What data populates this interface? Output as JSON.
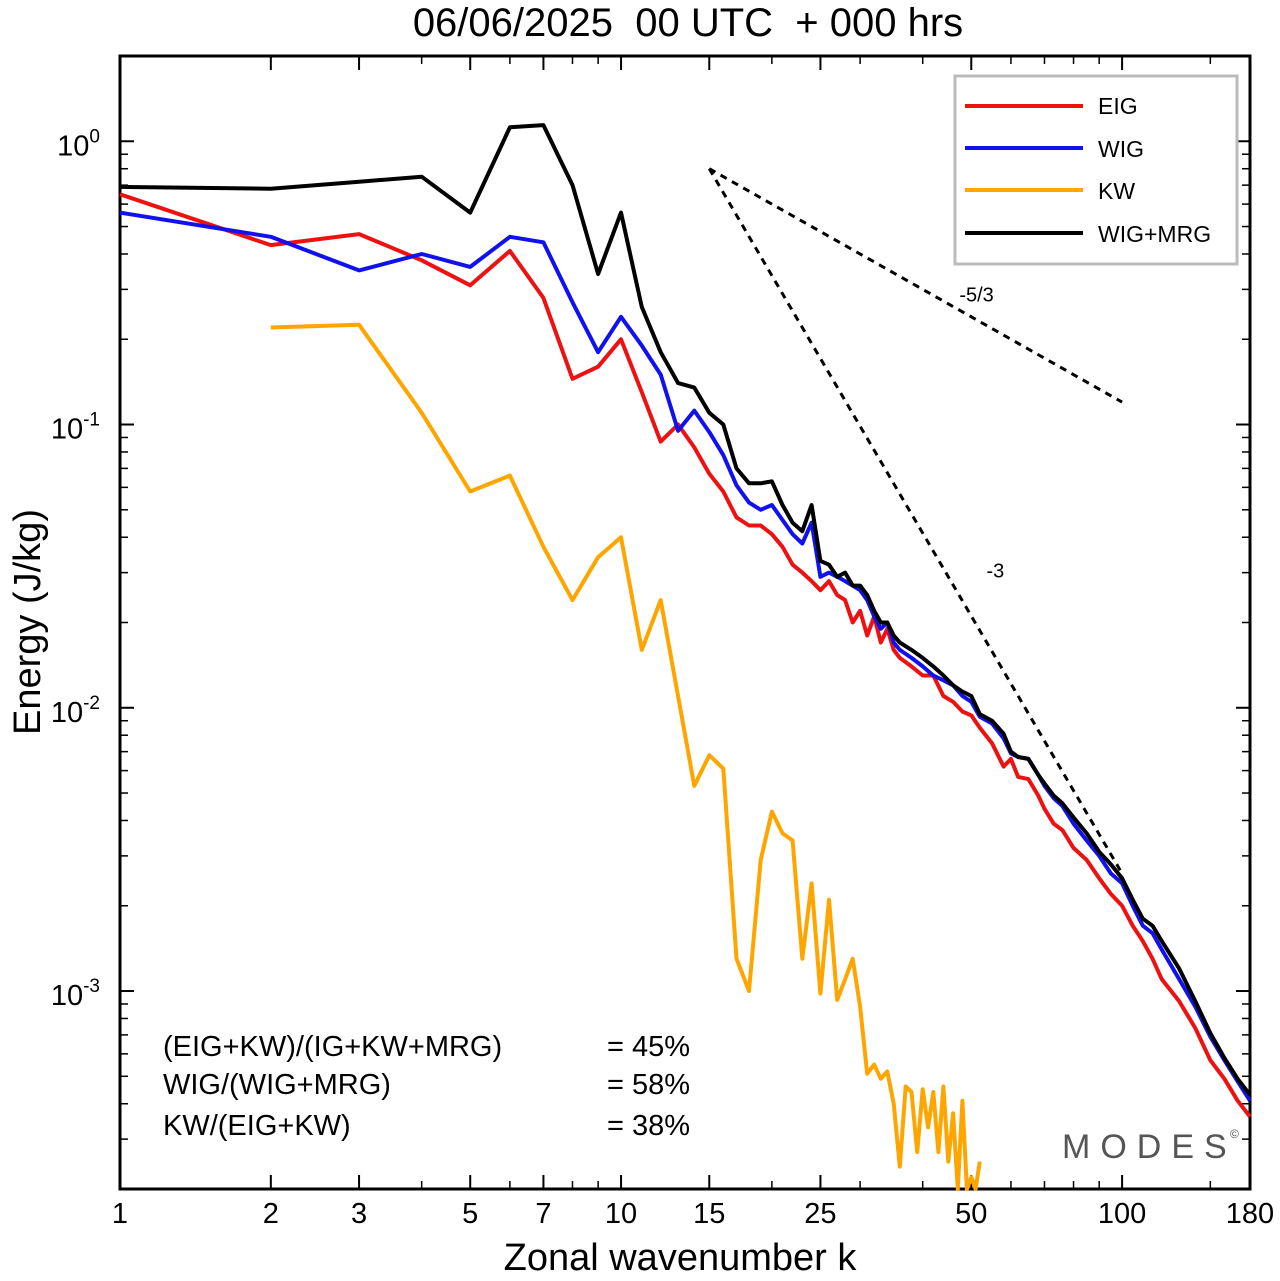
{
  "chart_data": {
    "type": "line",
    "title": "06/06/2025  00 UTC  + 000 hrs",
    "xlabel": "Zonal wavenumber k",
    "ylabel": "Energy (J/kg)",
    "xscale": "log",
    "yscale": "log",
    "xlim": [
      1,
      180
    ],
    "ylim": [
      0.0002,
      2.0
    ],
    "xticks": [
      1,
      2,
      3,
      5,
      7,
      10,
      15,
      25,
      50,
      100,
      180
    ],
    "xtick_labels": [
      "1",
      "2",
      "3",
      "5",
      "7",
      "10",
      "15",
      "25",
      "50",
      "100",
      "180"
    ],
    "yticks": [
      {
        "value": 1.0,
        "base": "10",
        "exp": "0"
      },
      {
        "value": 0.1,
        "base": "10",
        "exp": "-1"
      },
      {
        "value": 0.01,
        "base": "10",
        "exp": "-2"
      },
      {
        "value": 0.001,
        "base": "10",
        "exp": "-3"
      }
    ],
    "grid": false,
    "legend_position": "top-right",
    "series": [
      {
        "name": "EIG",
        "color": "#ee1111",
        "points": [
          [
            1,
            0.65
          ],
          [
            2,
            0.43
          ],
          [
            3,
            0.47
          ],
          [
            4,
            0.38
          ],
          [
            5,
            0.31
          ],
          [
            6,
            0.41
          ],
          [
            7,
            0.28
          ],
          [
            8,
            0.145
          ],
          [
            9,
            0.16
          ],
          [
            10,
            0.2
          ],
          [
            11,
            0.13
          ],
          [
            12,
            0.087
          ],
          [
            13,
            0.1
          ],
          [
            14,
            0.083
          ],
          [
            15,
            0.067
          ],
          [
            16,
            0.058
          ],
          [
            17,
            0.047
          ],
          [
            18,
            0.044
          ],
          [
            19,
            0.044
          ],
          [
            20,
            0.041
          ],
          [
            21,
            0.037
          ],
          [
            22,
            0.032
          ],
          [
            23,
            0.03
          ],
          [
            24,
            0.028
          ],
          [
            25,
            0.026
          ],
          [
            26,
            0.028
          ],
          [
            27,
            0.025
          ],
          [
            28,
            0.024
          ],
          [
            29,
            0.02
          ],
          [
            30,
            0.022
          ],
          [
            31,
            0.018
          ],
          [
            32,
            0.021
          ],
          [
            33,
            0.017
          ],
          [
            34,
            0.019
          ],
          [
            35,
            0.016
          ],
          [
            36,
            0.015
          ],
          [
            38,
            0.014
          ],
          [
            40,
            0.013
          ],
          [
            42,
            0.013
          ],
          [
            44,
            0.011
          ],
          [
            46,
            0.0105
          ],
          [
            48,
            0.0097
          ],
          [
            50,
            0.0094
          ],
          [
            52,
            0.0085
          ],
          [
            55,
            0.0075
          ],
          [
            58,
            0.0062
          ],
          [
            60,
            0.0066
          ],
          [
            62,
            0.0057
          ],
          [
            65,
            0.0056
          ],
          [
            68,
            0.0049
          ],
          [
            70,
            0.0044
          ],
          [
            73,
            0.0039
          ],
          [
            76,
            0.0037
          ],
          [
            80,
            0.0032
          ],
          [
            85,
            0.0029
          ],
          [
            90,
            0.0025
          ],
          [
            95,
            0.0022
          ],
          [
            100,
            0.002
          ],
          [
            105,
            0.0017
          ],
          [
            110,
            0.0015
          ],
          [
            115,
            0.0013
          ],
          [
            120,
            0.0011
          ],
          [
            130,
            0.00092
          ],
          [
            140,
            0.00074
          ],
          [
            150,
            0.00057
          ],
          [
            160,
            0.00049
          ],
          [
            170,
            0.00041
          ],
          [
            180,
            0.00036
          ]
        ]
      },
      {
        "name": "WIG",
        "color": "#1111ee",
        "points": [
          [
            1,
            0.56
          ],
          [
            2,
            0.46
          ],
          [
            3,
            0.35
          ],
          [
            4,
            0.4
          ],
          [
            5,
            0.36
          ],
          [
            6,
            0.46
          ],
          [
            7,
            0.44
          ],
          [
            8,
            0.27
          ],
          [
            9,
            0.18
          ],
          [
            10,
            0.24
          ],
          [
            11,
            0.19
          ],
          [
            12,
            0.15
          ],
          [
            13,
            0.095
          ],
          [
            14,
            0.112
          ],
          [
            15,
            0.094
          ],
          [
            16,
            0.078
          ],
          [
            17,
            0.061
          ],
          [
            18,
            0.053
          ],
          [
            19,
            0.05
          ],
          [
            20,
            0.052
          ],
          [
            21,
            0.046
          ],
          [
            22,
            0.041
          ],
          [
            23,
            0.038
          ],
          [
            24,
            0.045
          ],
          [
            25,
            0.029
          ],
          [
            26,
            0.03
          ],
          [
            27,
            0.029
          ],
          [
            28,
            0.028
          ],
          [
            29,
            0.027
          ],
          [
            30,
            0.026
          ],
          [
            31,
            0.024
          ],
          [
            32,
            0.021
          ],
          [
            33,
            0.019
          ],
          [
            34,
            0.02
          ],
          [
            35,
            0.017
          ],
          [
            36,
            0.016
          ],
          [
            38,
            0.015
          ],
          [
            40,
            0.014
          ],
          [
            42,
            0.013
          ],
          [
            44,
            0.0125
          ],
          [
            46,
            0.012
          ],
          [
            48,
            0.011
          ],
          [
            50,
            0.0105
          ],
          [
            52,
            0.0093
          ],
          [
            55,
            0.0088
          ],
          [
            58,
            0.0078
          ],
          [
            60,
            0.0069
          ],
          [
            62,
            0.0067
          ],
          [
            65,
            0.0066
          ],
          [
            68,
            0.0058
          ],
          [
            70,
            0.0053
          ],
          [
            73,
            0.0048
          ],
          [
            76,
            0.0045
          ],
          [
            80,
            0.0039
          ],
          [
            85,
            0.0034
          ],
          [
            90,
            0.003
          ],
          [
            95,
            0.0026
          ],
          [
            100,
            0.0024
          ],
          [
            105,
            0.002
          ],
          [
            110,
            0.0017
          ],
          [
            115,
            0.0016
          ],
          [
            120,
            0.0014
          ],
          [
            130,
            0.0011
          ],
          [
            140,
            0.00088
          ],
          [
            150,
            0.00069
          ],
          [
            160,
            0.00057
          ],
          [
            170,
            0.00048
          ],
          [
            180,
            0.00041
          ]
        ]
      },
      {
        "name": "KW",
        "color": "#ffa500",
        "points": [
          [
            2,
            0.22
          ],
          [
            3,
            0.225
          ],
          [
            4,
            0.11
          ],
          [
            5,
            0.058
          ],
          [
            6,
            0.066
          ],
          [
            7,
            0.037
          ],
          [
            8,
            0.024
          ],
          [
            9,
            0.034
          ],
          [
            10,
            0.04
          ],
          [
            11,
            0.016
          ],
          [
            12,
            0.024
          ],
          [
            14,
            0.0053
          ],
          [
            15,
            0.0068
          ],
          [
            16,
            0.0061
          ],
          [
            17,
            0.0013
          ],
          [
            18,
            0.001
          ],
          [
            19,
            0.0029
          ],
          [
            20,
            0.0043
          ],
          [
            21,
            0.0036
          ],
          [
            22,
            0.0034
          ],
          [
            23,
            0.0013
          ],
          [
            24,
            0.0024
          ],
          [
            25,
            0.00098
          ],
          [
            26,
            0.0021
          ],
          [
            27,
            0.00093
          ],
          [
            28,
            0.0011
          ],
          [
            29,
            0.0013
          ],
          [
            30,
            0.00088
          ],
          [
            31,
            0.00051
          ],
          [
            32,
            0.00055
          ],
          [
            33,
            0.00049
          ],
          [
            34,
            0.00052
          ],
          [
            35,
            0.0004
          ],
          [
            36,
            0.00024
          ],
          [
            37,
            0.00046
          ],
          [
            38,
            0.00044
          ],
          [
            39,
            0.00027
          ],
          [
            40,
            0.00045
          ],
          [
            41,
            0.00033
          ],
          [
            42,
            0.00044
          ],
          [
            43,
            0.00027
          ],
          [
            44,
            0.00046
          ],
          [
            45,
            0.00025
          ],
          [
            46,
            0.00037
          ],
          [
            47,
            0.0002
          ],
          [
            48,
            0.00041
          ],
          [
            49,
            0.0002
          ],
          [
            50,
            0.00022
          ],
          [
            51,
            0.0002
          ],
          [
            52,
            0.00025
          ]
        ]
      },
      {
        "name": "WIG+MRG",
        "color": "#000000",
        "points": [
          [
            1,
            0.69
          ],
          [
            2,
            0.68
          ],
          [
            3,
            0.72
          ],
          [
            4,
            0.75
          ],
          [
            5,
            0.56
          ],
          [
            6,
            1.12
          ],
          [
            7,
            1.14
          ],
          [
            8,
            0.7
          ],
          [
            9,
            0.34
          ],
          [
            10,
            0.56
          ],
          [
            11,
            0.26
          ],
          [
            12,
            0.18
          ],
          [
            13,
            0.14
          ],
          [
            14,
            0.135
          ],
          [
            15,
            0.11
          ],
          [
            16,
            0.1
          ],
          [
            17,
            0.07
          ],
          [
            18,
            0.062
          ],
          [
            19,
            0.062
          ],
          [
            20,
            0.063
          ],
          [
            21,
            0.052
          ],
          [
            22,
            0.045
          ],
          [
            23,
            0.042
          ],
          [
            24,
            0.052
          ],
          [
            25,
            0.033
          ],
          [
            26,
            0.032
          ],
          [
            27,
            0.029
          ],
          [
            28,
            0.03
          ],
          [
            29,
            0.027
          ],
          [
            30,
            0.027
          ],
          [
            31,
            0.025
          ],
          [
            32,
            0.022
          ],
          [
            33,
            0.02
          ],
          [
            34,
            0.02
          ],
          [
            35,
            0.018
          ],
          [
            36,
            0.017
          ],
          [
            38,
            0.016
          ],
          [
            40,
            0.015
          ],
          [
            42,
            0.014
          ],
          [
            44,
            0.013
          ],
          [
            46,
            0.012
          ],
          [
            48,
            0.0114
          ],
          [
            50,
            0.011
          ],
          [
            52,
            0.0095
          ],
          [
            55,
            0.009
          ],
          [
            58,
            0.0081
          ],
          [
            60,
            0.007
          ],
          [
            62,
            0.0067
          ],
          [
            65,
            0.0066
          ],
          [
            68,
            0.0058
          ],
          [
            70,
            0.0054
          ],
          [
            73,
            0.0049
          ],
          [
            76,
            0.0046
          ],
          [
            80,
            0.0041
          ],
          [
            85,
            0.0036
          ],
          [
            90,
            0.0031
          ],
          [
            95,
            0.0028
          ],
          [
            100,
            0.0025
          ],
          [
            105,
            0.0021
          ],
          [
            110,
            0.0018
          ],
          [
            115,
            0.0017
          ],
          [
            120,
            0.0015
          ],
          [
            130,
            0.0012
          ],
          [
            140,
            0.00092
          ],
          [
            150,
            0.00071
          ],
          [
            160,
            0.00058
          ],
          [
            170,
            0.00049
          ],
          [
            180,
            0.00043
          ]
        ]
      }
    ],
    "reference_slopes": [
      {
        "label": "-5/3",
        "from": [
          15,
          0.8
        ],
        "to": [
          100,
          0.12
        ]
      },
      {
        "label": "-3",
        "from": [
          15,
          0.8
        ],
        "to": [
          100,
          0.0026
        ]
      }
    ],
    "annotations": [
      {
        "label": "(EIG+KW)/(IG+KW+MRG)",
        "value": "= 45%"
      },
      {
        "label": "WIG/(WIG+MRG)",
        "value": "= 58%"
      },
      {
        "label": "KW/(EIG+KW)",
        "value": "= 38%"
      }
    ],
    "watermark": "MODES",
    "watermark_mark": "©"
  }
}
